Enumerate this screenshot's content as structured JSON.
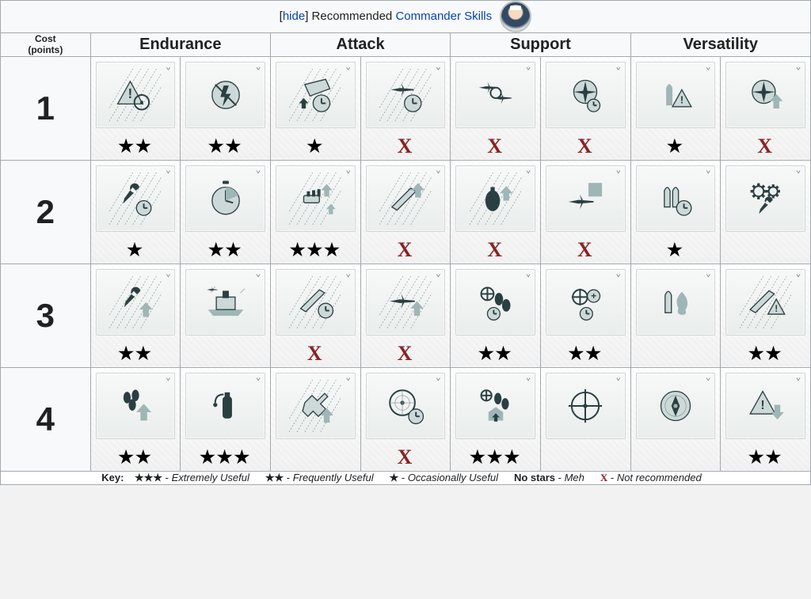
{
  "title": {
    "bracket_open": "[",
    "hide": "hide",
    "bracket_close": "]",
    "recommended": " Recommended ",
    "commander_skills": "Commander Skills"
  },
  "columns": {
    "cost_label_line1": "Cost",
    "cost_label_line2": "(points)",
    "headers": [
      "Endurance",
      "Attack",
      "Support",
      "Versatility"
    ]
  },
  "costs": [
    "1",
    "2",
    "3",
    "4"
  ],
  "icons": {
    "star_char": "★",
    "x_char": "X",
    "chevron": "˅"
  },
  "grid": [
    [
      {
        "name": "alert-range-icon",
        "rating": 2
      },
      {
        "name": "no-flash-icon",
        "rating": 2
      },
      {
        "name": "target-ship-icon",
        "rating": 1
      },
      {
        "name": "plane-time-icon",
        "rating": "X"
      },
      {
        "name": "air-squadron-icon",
        "rating": "X"
      },
      {
        "name": "engine-boost-icon",
        "rating": "X"
      },
      {
        "name": "shell-alert-icon",
        "rating": 1
      },
      {
        "name": "engine-up-icon",
        "rating": "X"
      }
    ],
    [
      {
        "name": "wrench-time-icon",
        "rating": 1
      },
      {
        "name": "stopwatch-icon",
        "rating": 2
      },
      {
        "name": "gun-arrows-icon",
        "rating": 3
      },
      {
        "name": "torpedo-up-icon",
        "rating": "X"
      },
      {
        "name": "bomb-up-icon",
        "rating": "X"
      },
      {
        "name": "plane-box-icon",
        "rating": "X"
      },
      {
        "name": "shells-time-icon",
        "rating": 1
      },
      {
        "name": "gears-wrench-icon",
        "rating": 0
      }
    ],
    [
      {
        "name": "wrench-up-icon",
        "rating": 2
      },
      {
        "name": "ship-deck-icon",
        "rating": 0
      },
      {
        "name": "torpedo-time-icon",
        "rating": "X"
      },
      {
        "name": "plane-up-icon",
        "rating": "X"
      },
      {
        "name": "bombs-target-icon",
        "rating": 2
      },
      {
        "name": "target-plus-icon",
        "rating": 2
      },
      {
        "name": "flame-shell-icon",
        "rating": 0
      },
      {
        "name": "torpedo-alert-icon",
        "rating": 2
      }
    ],
    [
      {
        "name": "cluster-up-icon",
        "rating": 2
      },
      {
        "name": "extinguisher-icon",
        "rating": 3
      },
      {
        "name": "cross-up-icon",
        "rating": 0
      },
      {
        "name": "radar-time-icon",
        "rating": "X"
      },
      {
        "name": "bombs-house-icon",
        "rating": 3
      },
      {
        "name": "target-plane-icon",
        "rating": 0
      },
      {
        "name": "compass-icon",
        "rating": 0
      },
      {
        "name": "alert-down-icon",
        "rating": 2
      }
    ]
  ],
  "key": {
    "prefix": "Key:",
    "entries": [
      {
        "symbol_type": "stars",
        "count": 3,
        "desc": "Extremely Useful"
      },
      {
        "symbol_type": "stars",
        "count": 2,
        "desc": "Frequently Useful"
      },
      {
        "symbol_type": "stars",
        "count": 1,
        "desc": "Occasionally Useful"
      },
      {
        "symbol_type": "none",
        "label": "No stars",
        "desc": "Meh"
      },
      {
        "symbol_type": "x",
        "desc": "Not recommended"
      }
    ]
  },
  "colors": {
    "link": "#0645ad",
    "x": "#8a2222",
    "star": "#000000",
    "border": "#a2a9b1",
    "icon_fg": "#2b3f42",
    "icon_light": "#9eb6b5",
    "card_bg_top": "#f7f9f8",
    "card_bg_bot": "#e9edec"
  }
}
